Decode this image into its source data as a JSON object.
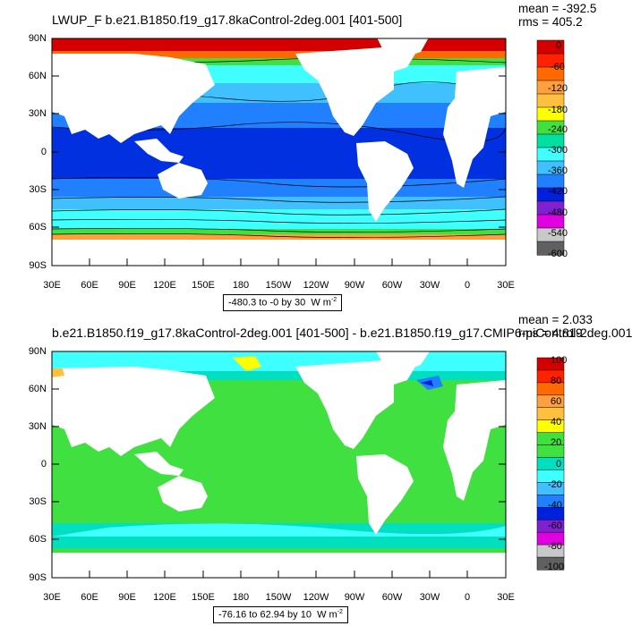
{
  "panels": [
    {
      "title": "LWUP_F b.e21.B1850.f19_g17.8kaControl-2deg.001 [401-500]",
      "mean": "mean = -392.5",
      "rms": "rms = 405.2",
      "info": "-480.3 to -0 by 30",
      "units": "W m",
      "units_exp": "-2",
      "colorbar_labels": [
        "0",
        "-60",
        "-120",
        "-180",
        "-240",
        "-300",
        "-360",
        "-420",
        "-480",
        "-540",
        "-600"
      ],
      "colorbar_colors": [
        "#d40000",
        "#ff2200",
        "#ff6a00",
        "#ffa040",
        "#ffc040",
        "#ffff00",
        "#40e040",
        "#00e0a0",
        "#40ffff",
        "#40c0ff",
        "#2080ff",
        "#0020e0",
        "#8020d0",
        "#e000e0",
        "#c8c8c8",
        "#606060"
      ]
    },
    {
      "title": "b.e21.B1850.f19_g17.8kaControl-2deg.001 [401-500] - b.e21.B1850.f19_g17.CMIP6-piControl-2deg.001",
      "mean": "mean = 2.033",
      "rms": "rms = 4.819",
      "info": "-76.16 to 62.94 by 10",
      "units": "W m",
      "units_exp": "-2",
      "colorbar_labels": [
        "100",
        "80",
        "60",
        "40",
        "20",
        "0",
        "-20",
        "-40",
        "-60",
        "-80",
        "-100"
      ],
      "colorbar_colors": [
        "#d40000",
        "#ff2200",
        "#ff6a00",
        "#ffa040",
        "#ffc040",
        "#ffff00",
        "#40e040",
        "#40e040",
        "#00e0c0",
        "#40ffff",
        "#40c0ff",
        "#2080ff",
        "#0020e0",
        "#8020d0",
        "#e000e0",
        "#c8c8c8",
        "#606060"
      ]
    }
  ],
  "lat_labels": [
    "90N",
    "60N",
    "30N",
    "0",
    "30S",
    "60S",
    "90S"
  ],
  "lon_labels": [
    "30E",
    "60E",
    "90E",
    "120E",
    "150E",
    "180",
    "150W",
    "120W",
    "90W",
    "60W",
    "30W",
    "0",
    "30E"
  ],
  "colors": {
    "land": "#ffffff",
    "ocean_green": "#40e040",
    "ocean_cyan": "#40ffff",
    "ocean_blue": "#2080ff",
    "deep_blue": "#0030e0",
    "sky_blue": "#40c0ff",
    "red": "#ff2200"
  }
}
